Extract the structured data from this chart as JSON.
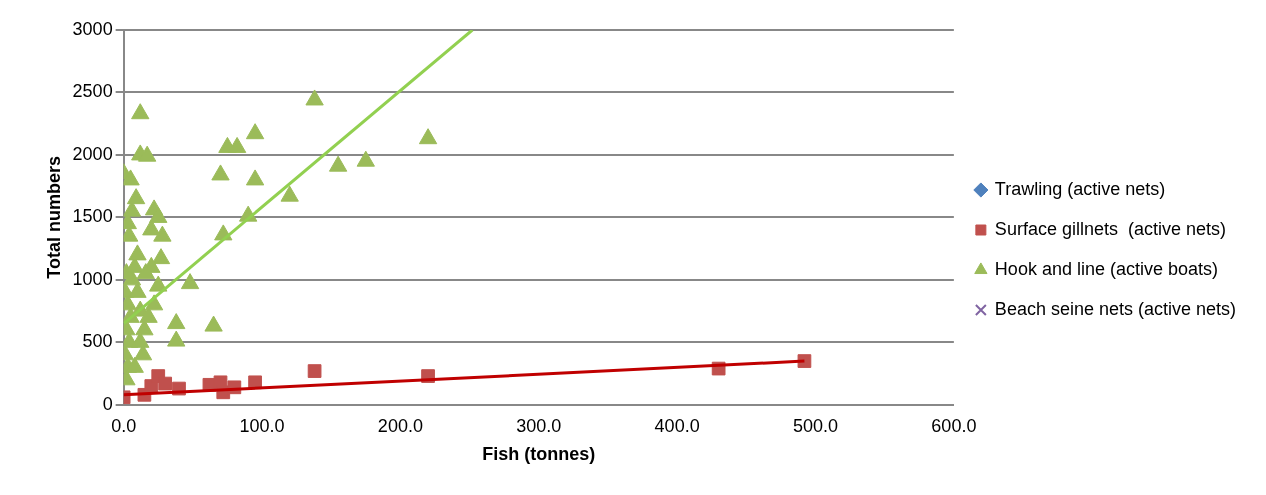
{
  "chart_data": {
    "type": "scatter",
    "xlabel": "Fish (tonnes)",
    "ylabel": "Total numbers",
    "xlim": [
      0,
      600
    ],
    "xticks": [
      {
        "value": 0,
        "label": "0.0"
      },
      {
        "value": 100,
        "label": "100.0"
      },
      {
        "value": 200,
        "label": "200.0"
      },
      {
        "value": 300,
        "label": "300.0"
      },
      {
        "value": 400,
        "label": "400.0"
      },
      {
        "value": 500,
        "label": "500.0"
      },
      {
        "value": 600,
        "label": "600.0"
      }
    ],
    "ylim": [
      0,
      3000
    ],
    "yticks": [
      0,
      500,
      1000,
      1500,
      2000,
      2500,
      3000
    ],
    "grid": "y",
    "legend": "right",
    "series": [
      {
        "name": "Trawling (active nets)",
        "color": "#4f81bd",
        "marker": "diamond"
      },
      {
        "name": "Surface gillnets  (active nets)",
        "color": "#c0504d",
        "marker": "square",
        "x": [
          0,
          15,
          20,
          25,
          30,
          40,
          62,
          70,
          72,
          80,
          95,
          138,
          220,
          430,
          492
        ],
        "values": [
          60,
          80,
          150,
          230,
          170,
          130,
          160,
          180,
          100,
          140,
          180,
          270,
          230,
          290,
          350
        ]
      },
      {
        "name": "Hook and line (active boats)",
        "color": "#9bbb59",
        "marker": "triangle",
        "x": [
          12,
          138,
          95,
          75,
          82,
          220,
          155,
          175,
          120,
          95,
          70,
          90,
          72,
          48,
          38,
          38,
          65,
          12,
          17,
          0,
          5,
          22,
          25,
          28,
          27,
          20,
          2,
          3,
          1,
          4,
          2,
          5,
          3,
          1,
          6,
          2,
          8,
          4,
          3,
          6,
          9,
          10,
          12,
          15,
          14,
          8,
          12,
          18,
          22,
          25,
          16,
          10,
          20
        ],
        "values": [
          2330,
          2440,
          2170,
          2060,
          2060,
          2130,
          1910,
          1950,
          1670,
          1800,
          1840,
          1510,
          1360,
          970,
          650,
          510,
          630,
          2000,
          1990,
          1850,
          1800,
          1560,
          1500,
          1350,
          1170,
          1100,
          200,
          300,
          400,
          500,
          600,
          700,
          800,
          900,
          1000,
          1050,
          1100,
          1350,
          1450,
          1550,
          1650,
          900,
          750,
          600,
          400,
          300,
          500,
          700,
          800,
          950,
          1050,
          1200,
          1400
        ]
      },
      {
        "name": "Beach seine nets (active nets)",
        "color": "#8064a2",
        "marker": "cross"
      },
      {
        "type": "line",
        "color": "#92d050",
        "marker": "none",
        "x": [
          0,
          252
        ],
        "values": [
          650,
          3000
        ]
      },
      {
        "type": "line",
        "color": "#c00000",
        "marker": "none",
        "x": [
          0,
          492
        ],
        "values": [
          80,
          350
        ]
      }
    ]
  }
}
